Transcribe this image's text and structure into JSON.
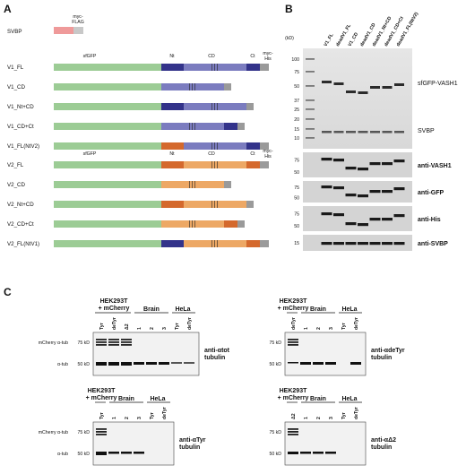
{
  "panels": {
    "a": "A",
    "b": "B",
    "c": "C"
  },
  "panel_a": {
    "svbp": {
      "label": "SVBP",
      "tag": "myc-\nFLAG"
    },
    "domain_headers": {
      "sfgfp": "sfGFP",
      "nt": "Nt",
      "cd": "CD",
      "ct": "Ct"
    },
    "tag_v1": "myc-\nHis",
    "tag_v2": "myc-\nHis",
    "constructs_v1": [
      {
        "label": "V1_FL"
      },
      {
        "label": "V1_CD"
      },
      {
        "label": "V1_Nt+CD"
      },
      {
        "label": "V1_CD+Ct"
      },
      {
        "label": "V1_FL(NtV2)"
      }
    ],
    "constructs_v2": [
      {
        "label": "V2_FL"
      },
      {
        "label": "V2_CD"
      },
      {
        "label": "V2_Nt+CD"
      },
      {
        "label": "V2_CD+Ct"
      },
      {
        "label": "V2_FL(NtV1)"
      }
    ],
    "colors": {
      "sfgfp": "#9ccc95",
      "v1_nt": "#33338a",
      "v1_cd": "#7b7cbf",
      "v2_nt": "#d4692d",
      "v2_cd": "#eda865",
      "tag": "#9a9a9a",
      "svbp": "#ef9a9a"
    }
  },
  "panel_b": {
    "lanes": [
      "V1_FL",
      "deadV1_FL",
      "V1_CD",
      "deadV1_CD",
      "deadV1_Nt+CD",
      "deadV1_CD+Ct",
      "deadV1_FL(NtV2)"
    ],
    "unit": "(kD)",
    "gel_markers": [
      "100",
      "75",
      "50",
      "37",
      "25",
      "20",
      "15",
      "10"
    ],
    "gel_labels": [
      "sfGFP-VASH1",
      "SVBP"
    ],
    "blots": [
      {
        "label": "anti-VASH1",
        "markers": [
          "75",
          "50"
        ]
      },
      {
        "label": "anti-GFP",
        "markers": [
          "75",
          "50"
        ]
      },
      {
        "label": "anti-His",
        "markers": [
          "75",
          "50"
        ]
      },
      {
        "label": "anti-SVBP",
        "markers": [
          "15"
        ]
      }
    ]
  },
  "panel_c": {
    "blot1": {
      "group1": "HEK293T\n+ mCherry",
      "group2": "Brain",
      "group3": "HeLa",
      "lanes": [
        "Tyr",
        "deTyr",
        "Δ2",
        "1",
        "2",
        "3",
        "Tyr",
        "deTyr"
      ],
      "left_labels": [
        "mCherry α-tub",
        "α-tub"
      ],
      "markers": [
        "75 kD",
        "50 kD"
      ],
      "antibody": "anti-αtot\ntubulin"
    },
    "blot2": {
      "group1": "HEK293T\n+ mCherry",
      "group2": "Brain",
      "group3": "HeLa",
      "lanes": [
        "deTyr",
        "1",
        "2",
        "3",
        "Tyr",
        "deTyr"
      ],
      "markers": [
        "75 kD",
        "50 kD"
      ],
      "antibody": "anti-αdeTyr\ntubulin"
    },
    "blot3": {
      "group1": "HEK293T\n+ mCherry",
      "group2": "Brain",
      "group3": "HeLa",
      "lanes": [
        "Tyr",
        "1",
        "2",
        "3",
        "Tyr",
        "deTyr"
      ],
      "left_labels": [
        "mCherry α-tub",
        "α-tub"
      ],
      "markers": [
        "75 kD",
        "50 kD"
      ],
      "antibody": "anti-αTyr\ntubulin"
    },
    "blot4": {
      "group1": "HEK293T\n+ mCherry",
      "group2": "Brain",
      "group3": "HeLa",
      "lanes": [
        "Δ2",
        "1",
        "2",
        "3",
        "Tyr",
        "deTyr"
      ],
      "markers": [
        "75 kD",
        "50 kD"
      ],
      "antibody": "anti-αΔ2\ntubulin"
    }
  }
}
